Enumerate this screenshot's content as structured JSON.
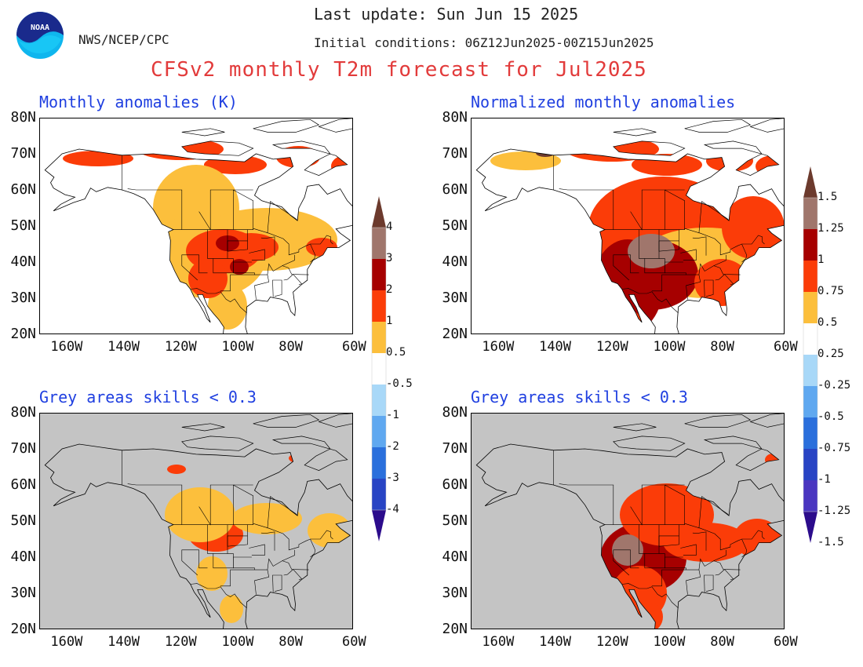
{
  "header": {
    "agency": "NWS/NCEP/CPC",
    "last_update": "Last update: Sun Jun 15 2025",
    "initial_conditions": "Initial conditions: 06Z12Jun2025-00Z15Jun2025",
    "title": "CFSv2 monthly T2m forecast for Jul2025"
  },
  "logo_text": "NOAA",
  "panels": [
    {
      "id": "tl",
      "title": "Monthly anomalies (K)",
      "skill_mask": false
    },
    {
      "id": "tr",
      "title": "Normalized monthly anomalies",
      "skill_mask": false
    },
    {
      "id": "bl",
      "title": "Grey areas skills < 0.3",
      "skill_mask": true
    },
    {
      "id": "br",
      "title": "Grey areas skills < 0.3",
      "skill_mask": true
    }
  ],
  "axes": {
    "lat_labels": [
      "80N",
      "70N",
      "60N",
      "50N",
      "40N",
      "30N",
      "20N"
    ],
    "lon_labels": [
      "160W",
      "140W",
      "120W",
      "100W",
      "80W",
      "60W"
    ]
  },
  "colorbar_left": {
    "labels": [
      "4",
      "3",
      "2",
      "1",
      "0.5",
      "-0.5",
      "-1",
      "-2",
      "-3",
      "-4"
    ]
  },
  "colorbar_right": {
    "labels": [
      "1.5",
      "1.25",
      "1",
      "0.75",
      "0.5",
      "0.25",
      "-0.25",
      "-0.5",
      "-0.75",
      "-1",
      "-1.25",
      "-1.5"
    ]
  },
  "colors": {
    "warm": [
      "#fcbf3c",
      "#fb3c08",
      "#a60000",
      "#a0766c",
      "#6c3a2d"
    ],
    "cool": [
      "#a8d8f8",
      "#5fa8f0",
      "#2a6fdc",
      "#2844c4",
      "#4a36c0",
      "#2c0c8c"
    ],
    "mask_grey": "#c4c4c4",
    "title_blue": "#1f3fe0",
    "title_red": "#e23b3b"
  }
}
